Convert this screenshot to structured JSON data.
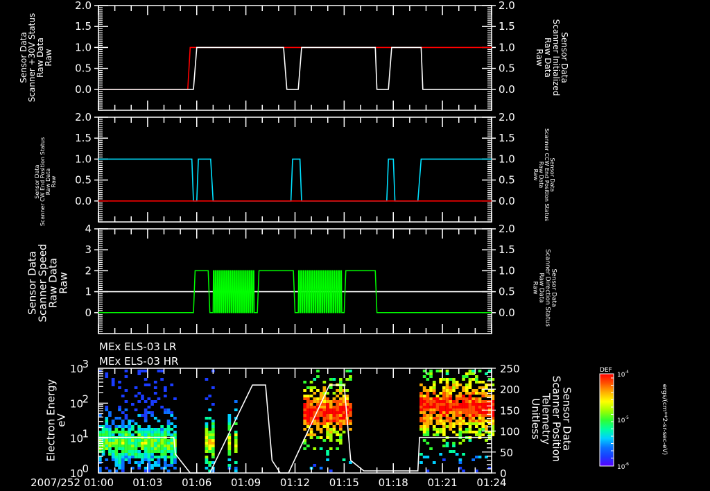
{
  "chart_data": [
    {
      "type": "line",
      "panel": "panel-1",
      "title": "",
      "ylabel_left": [
        "Sensor Data",
        "Scanner +30V Status",
        "Raw Data",
        "Raw"
      ],
      "ylabel_left_color": "#ff0000",
      "ylabel_right": [
        "Sensor Data",
        "Scanner Initialized",
        "Raw Data",
        "Raw"
      ],
      "ylabel_right_color": "#ffffff",
      "yticks_left": [
        "2.0",
        "1.5",
        "1.0",
        "0.5",
        "0.0"
      ],
      "yticks_right": [
        "2.0",
        "1.5",
        "1.0",
        "0.5",
        "0.0"
      ],
      "ylim_left": [
        -0.5,
        2.0
      ],
      "ylim_right": [
        -0.5,
        2.0
      ],
      "series": [
        {
          "name": "Scanner +30V Status",
          "color": "#ff0000",
          "x_min": [
            0,
            5.45,
            5.6,
            11.3,
            12.2,
            16.9,
            17.7,
            24
          ],
          "y": [
            0,
            0,
            1,
            1,
            1,
            1,
            1,
            1
          ]
        },
        {
          "name": "Scanner Initialized",
          "color": "#ffffff",
          "x_min": [
            0,
            5.8,
            6.0,
            11.3,
            11.5,
            12.2,
            12.4,
            16.9,
            17.0,
            17.7,
            17.9,
            19.7,
            19.8,
            24
          ],
          "y": [
            0,
            0,
            1,
            1,
            0,
            0,
            1,
            1,
            0,
            0,
            1,
            1,
            0,
            0
          ]
        }
      ]
    },
    {
      "type": "line",
      "panel": "panel-2",
      "ylabel_left": [
        "Sensor Data",
        "Scanner CW End Position Status",
        "Raw Data",
        "Raw"
      ],
      "ylabel_left_color": "#ff0000",
      "ylabel_right": [
        "Sensor Data",
        "Scanner CCW End Position Status",
        "Raw Data",
        "Raw"
      ],
      "ylabel_right_color": "#00e0ff",
      "yticks_left": [
        "2.0",
        "1.5",
        "1.0",
        "0.5",
        "0.0"
      ],
      "yticks_right": [
        "2.0",
        "1.5",
        "1.0",
        "0.5",
        "0.0"
      ],
      "ylim_left": [
        -0.5,
        2.0
      ],
      "series": [
        {
          "name": "CW End Position",
          "color": "#ff0000",
          "x_min": [
            0,
            5.8,
            6.85,
            11.8,
            12.4,
            17.6,
            18.0,
            24
          ],
          "y": [
            0,
            0,
            0,
            0,
            0,
            0,
            0,
            0
          ]
        },
        {
          "name": "CCW End Position",
          "color": "#00e0ff",
          "x_min": [
            0,
            5.7,
            5.8,
            6.0,
            6.1,
            6.85,
            7.0,
            11.75,
            11.85,
            12.3,
            12.4,
            17.6,
            17.7,
            18.0,
            18.1,
            19.5,
            19.7,
            24
          ],
          "y": [
            1,
            1,
            0,
            0,
            1,
            1,
            0,
            0,
            1,
            1,
            0,
            0,
            1,
            1,
            0,
            0,
            1,
            1
          ]
        }
      ]
    },
    {
      "type": "line",
      "panel": "panel-3",
      "ylabel_left": [
        "Sensor Data",
        "Scanner Speed",
        "Raw Data",
        "Raw"
      ],
      "ylabel_left_color": "#ffffff",
      "ylabel_right": [
        "Sensor Data",
        "Scanner Direction Status",
        "Raw Data",
        "Raw"
      ],
      "ylabel_right_color": "#00ff00",
      "yticks_left": [
        "4",
        "3",
        "2",
        "1",
        "0"
      ],
      "yticks_right": [
        "2.0",
        "1.5",
        "1.0",
        "0.5",
        "0.0"
      ],
      "ylim_left": [
        -1,
        4
      ],
      "ylim_right": [
        -0.5,
        2.0
      ],
      "series": [
        {
          "name": "Scanner Speed",
          "color": "#ffffff",
          "x_min": [
            0,
            24
          ],
          "y": [
            1,
            1
          ]
        },
        {
          "name": "Scanner Direction Status",
          "color": "#00ff00",
          "oscillating_intervals_min": [
            [
              7.0,
              9.55
            ],
            [
              12.2,
              14.9
            ]
          ],
          "high_intervals_min": [
            [
              5.8,
              6.8
            ],
            [
              9.7,
              12.0
            ],
            [
              15.0,
              17.0
            ]
          ],
          "y_low": 0,
          "y_high": 1
        }
      ]
    },
    {
      "type": "heatmap",
      "panel": "panel-4",
      "titles": [
        "MEx ELS-03 LR",
        "MEx ELS-03 HR"
      ],
      "ylabel_left": [
        "Electron Energy",
        "eV"
      ],
      "ylabel_right": [
        "Sensor Data",
        "Scanner Position",
        "Telemetry",
        "Unitless"
      ],
      "yticks_left": [
        "10^3",
        "10^2",
        "10^1",
        "10^0"
      ],
      "yticks_right": [
        "250",
        "200",
        "150",
        "100",
        "50",
        "0"
      ],
      "ylim_left": [
        1,
        1000
      ],
      "ylim_right": [
        0,
        250
      ],
      "colorbar": {
        "label": "DEF",
        "ticks": [
          "10^-4",
          "10^-5",
          "10^-6"
        ],
        "units": "ergs/(cm**2-sr-sec-eV)"
      },
      "overlay_line": {
        "name": "Scanner Position",
        "color": "#ffffff",
        "x_min": [
          0,
          4.6,
          4.7,
          5.6,
          6.8,
          9.4,
          10.2,
          10.6,
          11.1,
          11.6,
          14.1,
          15.0,
          15.4,
          16.2,
          17.0,
          19.5,
          19.6,
          24
        ],
        "y": [
          85,
          85,
          45,
          0,
          0,
          210,
          210,
          30,
          0,
          0,
          210,
          210,
          30,
          5,
          5,
          5,
          85,
          85
        ]
      },
      "bursts": [
        {
          "x_min": [
            0,
            4.6
          ],
          "center_ev": 8,
          "intensity": "low"
        },
        {
          "x_min": [
            6.5,
            8.4
          ],
          "center_ev": 8,
          "intensity": "medium"
        },
        {
          "x_min": [
            12.5,
            15.4
          ],
          "center_ev": 60,
          "intensity": "high"
        },
        {
          "x_min": [
            19.6,
            24
          ],
          "center_ev": 90,
          "intensity": "high"
        }
      ]
    }
  ],
  "xaxis": {
    "ticks": [
      "2007/252 01:00",
      "01:03",
      "01:06",
      "01:09",
      "01:12",
      "01:15",
      "01:18",
      "01:21",
      "01:24"
    ],
    "range_min": [
      0,
      24
    ]
  },
  "colors": {
    "background": "#000000",
    "axes": "#ffffff"
  }
}
